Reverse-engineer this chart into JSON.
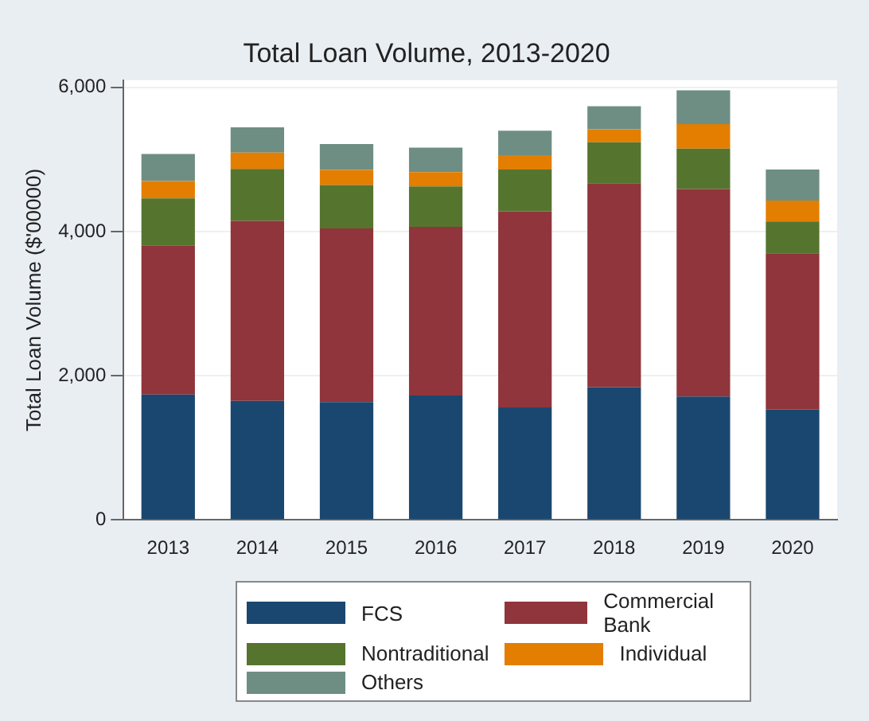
{
  "chart_data": {
    "type": "bar",
    "title": "Total Loan Volume, 2013-2020",
    "ylabel": "Total Loan Volume ($'00000)",
    "categories": [
      "2013",
      "2014",
      "2015",
      "2016",
      "2017",
      "2018",
      "2019",
      "2020"
    ],
    "stacked": true,
    "series": [
      {
        "name": "FCS",
        "color": "#1a476f",
        "values": [
          1740,
          1650,
          1635,
          1725,
          1560,
          1840,
          1710,
          1530
        ]
      },
      {
        "name": "Commercial Bank",
        "color": "#90353b",
        "values": [
          2070,
          2500,
          2410,
          2340,
          2720,
          2830,
          2880,
          2170
        ]
      },
      {
        "name": "Nontraditional",
        "color": "#55752f",
        "values": [
          650,
          720,
          600,
          560,
          580,
          570,
          560,
          440
        ]
      },
      {
        "name": "Individual",
        "color": "#e37e00",
        "values": [
          240,
          225,
          210,
          200,
          200,
          180,
          340,
          290
        ]
      },
      {
        "name": "Others",
        "color": "#6e8e84",
        "values": [
          375,
          350,
          360,
          340,
          340,
          320,
          470,
          430
        ]
      }
    ],
    "ylim": [
      0,
      6100
    ],
    "yticks": [
      {
        "value": 0,
        "label": "0"
      },
      {
        "value": 2000,
        "label": "2,000"
      },
      {
        "value": 4000,
        "label": "4,000"
      },
      {
        "value": 6000,
        "label": "6,000"
      }
    ],
    "grid": "y",
    "legend": "bottom"
  }
}
